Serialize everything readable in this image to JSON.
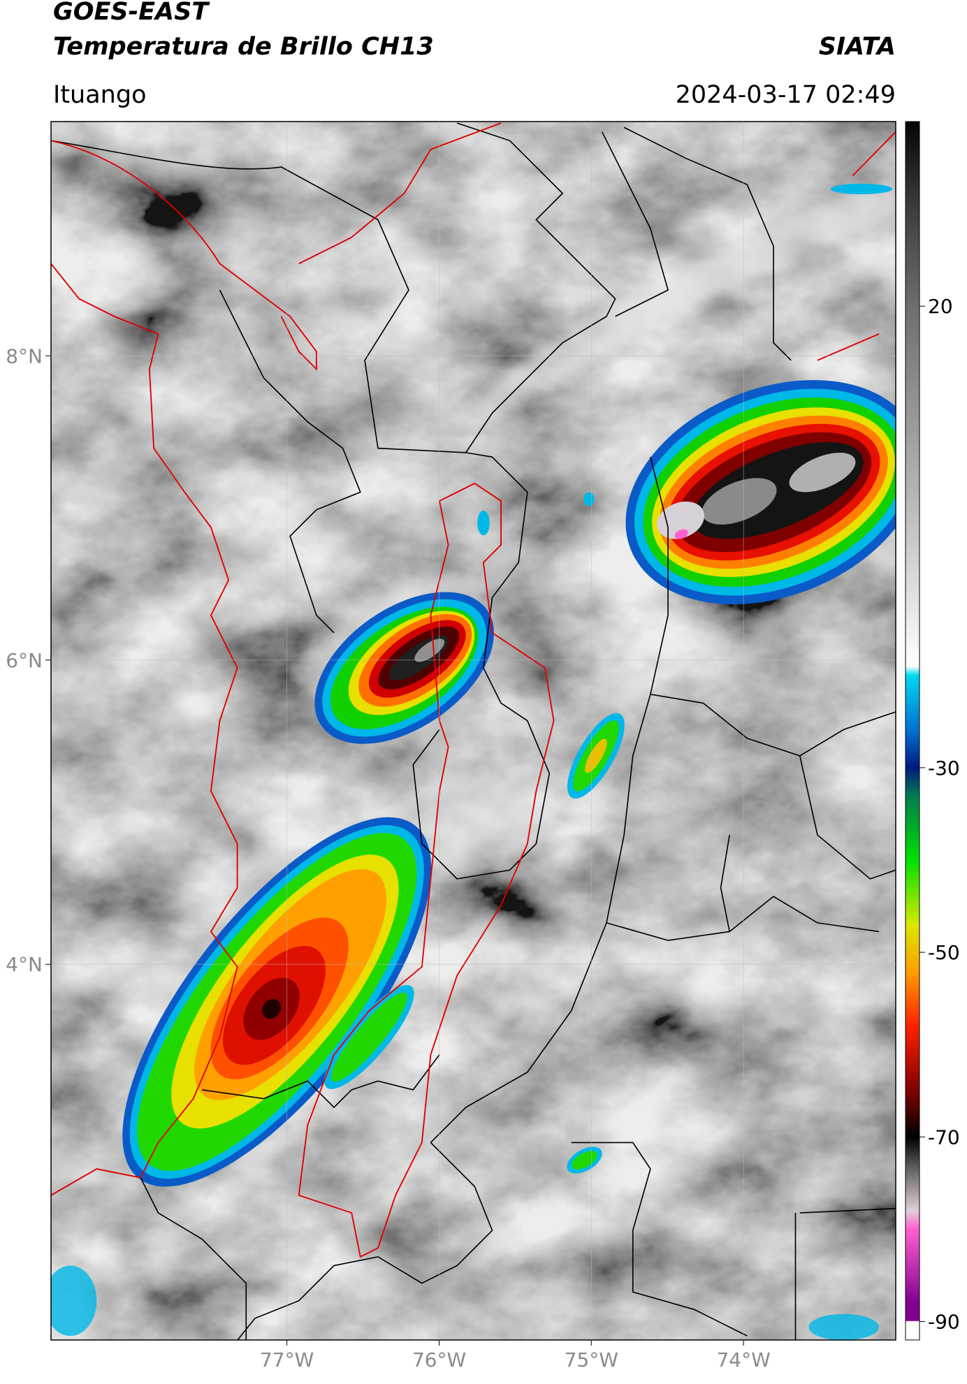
{
  "map": {
    "title": "GOES-EAST",
    "subtitle": "Temperatura de Brillo CH13",
    "agency": "SIATA",
    "location": "Ituango",
    "timestamp": "2024-03-17 02:49",
    "xlim": [
      -78.55,
      -73.0
    ],
    "ylim": [
      1.53,
      9.54
    ],
    "xticks": [
      {
        "value": -77,
        "label": "77°W"
      },
      {
        "value": -76,
        "label": "76°W"
      },
      {
        "value": -75,
        "label": "75°W"
      },
      {
        "value": -74,
        "label": "74°W"
      }
    ],
    "yticks": [
      {
        "value": 8,
        "label": "8°N"
      },
      {
        "value": 6,
        "label": "6°N"
      },
      {
        "value": 4,
        "label": "4°N"
      }
    ],
    "grid": true,
    "colorbar": {
      "lim": [
        -92,
        40
      ],
      "ticks": [
        20,
        -30,
        -50,
        -70,
        -90
      ],
      "stops": [
        {
          "value": 40,
          "color": "#050505"
        },
        {
          "value": 30,
          "color": "#404040"
        },
        {
          "value": 20,
          "color": "#6e6e6e"
        },
        {
          "value": 0,
          "color": "#b4b4b4"
        },
        {
          "value": -19,
          "color": "#ffffff"
        },
        {
          "value": -20,
          "color": "#00d8f0"
        },
        {
          "value": -26,
          "color": "#0070d0"
        },
        {
          "value": -30,
          "color": "#001a80"
        },
        {
          "value": -33,
          "color": "#007a50"
        },
        {
          "value": -40,
          "color": "#00e000"
        },
        {
          "value": -47,
          "color": "#d8e800"
        },
        {
          "value": -52,
          "color": "#ffa000"
        },
        {
          "value": -58,
          "color": "#ff2000"
        },
        {
          "value": -65,
          "color": "#800000"
        },
        {
          "value": -70,
          "color": "#000000"
        },
        {
          "value": -74,
          "color": "#707070"
        },
        {
          "value": -78,
          "color": "#e0d0d8"
        },
        {
          "value": -80,
          "color": "#ff60d0"
        },
        {
          "value": -88,
          "color": "#800090"
        },
        {
          "value": -89.9,
          "color": "#800090"
        },
        {
          "value": -90,
          "color": "#ffffff"
        },
        {
          "value": -92,
          "color": "#ffffff"
        }
      ]
    }
  }
}
